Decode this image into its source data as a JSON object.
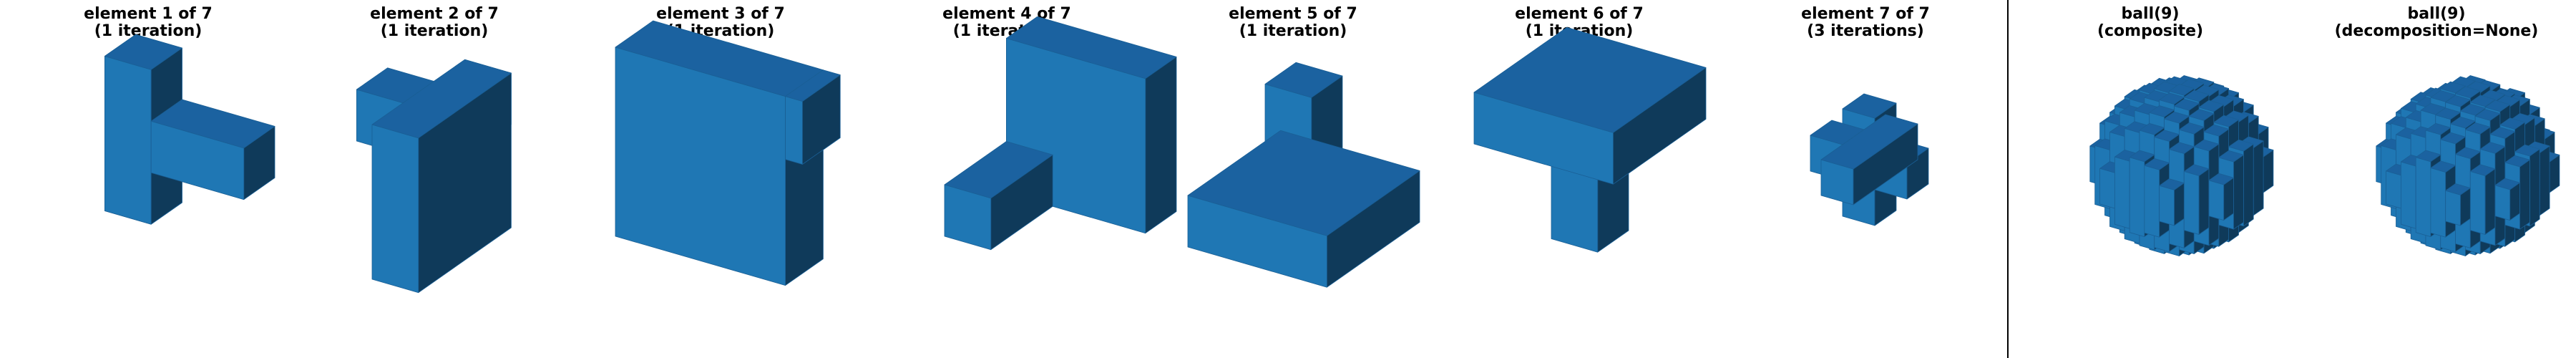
{
  "panels": [
    {
      "title_line1": "element 1 of 7",
      "title_line2": "(1 iteration)",
      "shape": "element-1"
    },
    {
      "title_line1": "element 2 of 7",
      "title_line2": "(1 iteration)",
      "shape": "element-2"
    },
    {
      "title_line1": "element 3 of 7",
      "title_line2": "(1 iteration)",
      "shape": "element-3"
    },
    {
      "title_line1": "element 4 of 7",
      "title_line2": "(1 iteration)",
      "shape": "element-4"
    },
    {
      "title_line1": "element 5 of 7",
      "title_line2": "(1 iteration)",
      "shape": "element-5"
    },
    {
      "title_line1": "element 6 of 7",
      "title_line2": "(1 iteration)",
      "shape": "element-6"
    },
    {
      "title_line1": "element 7 of 7",
      "title_line2": "(3 iterations)",
      "shape": "element-7"
    },
    {
      "title_line1": "ball(9)",
      "title_line2": "(composite)",
      "shape": "ball"
    },
    {
      "title_line1": "ball(9)",
      "title_line2": "(decomposition=None)",
      "shape": "ball"
    }
  ],
  "colors": {
    "front": "#1f77b4",
    "top": "#1b62a0",
    "side": "#0f3a5a",
    "edge": "#1a5f95",
    "divider": "#000000"
  }
}
